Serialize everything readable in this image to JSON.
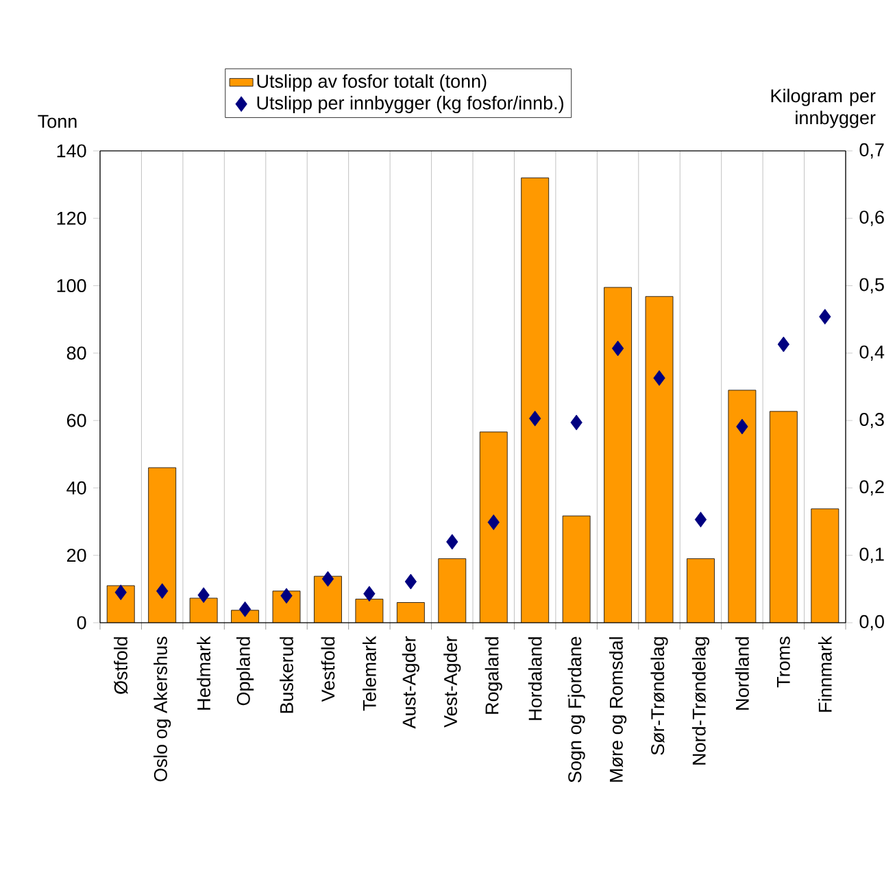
{
  "chart_data": {
    "type": "bar",
    "categories": [
      "Østfold",
      "Oslo og Akershus",
      "Hedmark",
      "Oppland",
      "Buskerud",
      "Vestfold",
      "Telemark",
      "Aust-Agder",
      "Vest-Agder",
      "Rogaland",
      "Hordaland",
      "Sogn og Fjordane",
      "Møre og Romsdal",
      "Sør-Trøndelag",
      "Nord-Trøndelag",
      "Nordland",
      "Troms",
      "Finnmark"
    ],
    "series": [
      {
        "name": "Utslipp av fosfor totalt (tonn)",
        "color": "#ff9900",
        "values": [
          11,
          46,
          7.3,
          3.7,
          9.4,
          13.8,
          7,
          6,
          19,
          56.6,
          132,
          31.7,
          99.5,
          96.8,
          19,
          69,
          62.7,
          33.8
        ]
      },
      {
        "name": "Utslipp per innbygger (kg fosfor/innb.)",
        "type": "scatter",
        "axis": "y2",
        "marker": "diamond",
        "color": "#000080",
        "values": [
          0.045,
          0.047,
          0.041,
          0.02,
          0.04,
          0.065,
          0.043,
          0.061,
          0.12,
          0.149,
          0.303,
          0.297,
          0.407,
          0.363,
          0.153,
          0.291,
          0.413,
          0.454
        ]
      }
    ],
    "ylabel": "Tonn",
    "y2label": "Kilogram per innbygger",
    "ylim": [
      0,
      140
    ],
    "yticks": [
      0,
      20,
      40,
      60,
      80,
      100,
      120,
      140
    ],
    "y2lim": [
      0,
      0.7
    ],
    "y2ticks": [
      {
        "value": 0,
        "label": "0,0"
      },
      {
        "value": 0.1,
        "label": "0,1"
      },
      {
        "value": 0.2,
        "label": "0,2"
      },
      {
        "value": 0.3,
        "label": "0,3"
      },
      {
        "value": 0.4,
        "label": "0,4"
      },
      {
        "value": 0.5,
        "label": "0,5"
      },
      {
        "value": 0.6,
        "label": "0,6"
      },
      {
        "value": 0.7,
        "label": "0,7"
      }
    ],
    "legend": "top",
    "grid": "x"
  }
}
